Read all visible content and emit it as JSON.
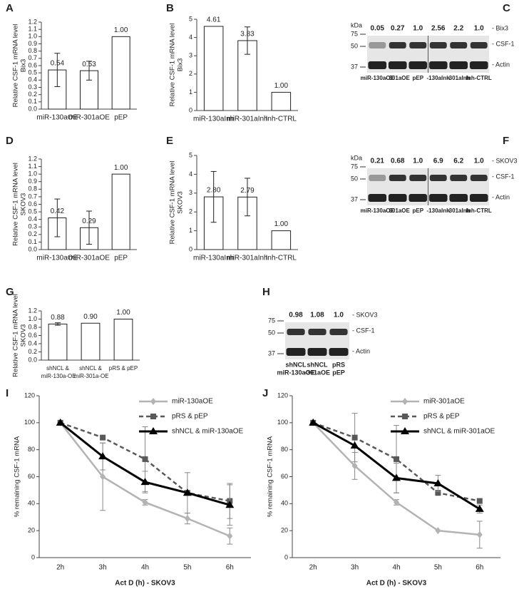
{
  "chart_data": [
    {
      "type": "bar",
      "panel": "A",
      "y_label": [
        "Relative CSF-1 mRNA level",
        "Bix3"
      ],
      "categories": [
        "miR-130aOE",
        "miR-301aOE",
        "pEP"
      ],
      "values": [
        0.54,
        0.53,
        1.0
      ],
      "value_labels": [
        "0.54",
        "0.53",
        "1.00"
      ],
      "errors": [
        0.23,
        0.13,
        0
      ],
      "color": "#ffffff",
      "ylim": [
        0,
        1.2
      ],
      "yticks": [
        {
          "value": 0,
          "label": "0.0"
        },
        0.1,
        0.2,
        0.3,
        0.4,
        0.5,
        0.6,
        0.7,
        0.8,
        0.9,
        {
          "value": 1,
          "label": "1.0"
        },
        1.1,
        1.2
      ]
    },
    {
      "type": "bar",
      "panel": "B",
      "y_label": [
        "Relative CSF-1 mRNA level",
        "Bix3"
      ],
      "categories": [
        "miR-130aInh",
        "miR-301aInh",
        "Inh-CTRL"
      ],
      "values": [
        4.61,
        3.83,
        1.0
      ],
      "value_labels": [
        "4.61",
        "3.83",
        "1.00"
      ],
      "errors": [
        0,
        0.75,
        0
      ],
      "color": "#ffffff",
      "ylim": [
        0,
        5
      ],
      "yticks": [
        0,
        1,
        2,
        3,
        4,
        5
      ]
    },
    {
      "type": "bar",
      "panel": "D",
      "y_label": [
        "Relative CSF-1 mRNA level",
        "SKOV3"
      ],
      "categories": [
        "miR-130aOE",
        "miR-301aOE",
        "pEP"
      ],
      "values": [
        0.42,
        0.29,
        1.0
      ],
      "value_labels": [
        "0.42",
        "0.29",
        "1.00"
      ],
      "errors": [
        0.25,
        0.22,
        0
      ],
      "color": "#ffffff",
      "ylim": [
        0,
        1.2
      ],
      "yticks": [
        {
          "value": 0,
          "label": "0.0"
        },
        0.1,
        0.2,
        0.3,
        0.4,
        0.5,
        0.6,
        0.7,
        0.8,
        0.9,
        {
          "value": 1,
          "label": "1.0"
        },
        1.1,
        1.2
      ]
    },
    {
      "type": "bar",
      "panel": "E",
      "y_label": [
        "Relative CSF-1 mRNA level",
        "SKOV3"
      ],
      "categories": [
        "miR-130aInh",
        "miR-301aInh",
        "Inh-CTRL"
      ],
      "values": [
        2.8,
        2.79,
        1.0
      ],
      "value_labels": [
        "2.80",
        "2.79",
        "1.00"
      ],
      "errors": [
        1.35,
        1.0,
        0
      ],
      "color": "#ffffff",
      "ylim": [
        0,
        5
      ],
      "yticks": [
        0,
        1,
        2,
        3,
        4,
        5
      ]
    },
    {
      "type": "bar",
      "panel": "G",
      "y_label": [
        "Relative CSF-1 mRNA level",
        "SKOV3"
      ],
      "categories": [
        "shNCL & miR-130a-OE",
        "shNCL & miR-301a-OE",
        "pRS & pEP"
      ],
      "values": [
        0.88,
        0.9,
        1.0
      ],
      "value_labels": [
        "0.88",
        "0.90",
        "1.00"
      ],
      "errors": [
        0.03,
        0,
        0
      ],
      "color": "#ffffff",
      "ylim": [
        0,
        1.2
      ],
      "yticks": [
        {
          "value": 0,
          "label": "0.0"
        },
        0.2,
        0.4,
        0.6,
        0.8,
        {
          "value": 1,
          "label": "1.0"
        },
        1.2
      ]
    },
    {
      "type": "line",
      "panel": "I",
      "x_label": "Act D (h) - SKOV3",
      "y_label": [
        "% remaining CSF-1 mRNA"
      ],
      "categories": [
        "2h",
        "3h",
        "4h",
        "5h",
        "6h"
      ],
      "ylim": [
        0,
        120
      ],
      "yticks": [
        0,
        20,
        40,
        60,
        80,
        100,
        120
      ],
      "legend": "upper right",
      "series": [
        {
          "name": "miR-130aOE",
          "color": "#b3b3b3",
          "line_style": "solid",
          "marker": "diamond",
          "values": [
            100,
            60,
            41,
            29,
            16
          ],
          "errors": [
            0,
            25,
            2,
            4,
            6
          ]
        },
        {
          "name": "pRS & pEP",
          "color": "#595959",
          "line_style": "dashed",
          "marker": "square",
          "values": [
            100,
            89,
            73,
            48,
            42
          ],
          "errors": [
            0,
            0,
            24,
            15,
            13
          ]
        },
        {
          "name": "shNCL & miR-130aOE",
          "color": "#000000",
          "line_style": "solid",
          "marker": "triangle",
          "values": [
            100,
            75,
            56,
            48,
            39
          ],
          "errors": [
            0,
            10,
            8,
            0,
            15
          ]
        }
      ]
    },
    {
      "type": "line",
      "panel": "J",
      "x_label": "Act D (h) - SKOV3",
      "y_label": [
        "% remaining CSF-1 mRNA"
      ],
      "categories": [
        "2h",
        "3h",
        "4h",
        "5h",
        "6h"
      ],
      "ylim": [
        0,
        120
      ],
      "yticks": [
        0,
        20,
        40,
        60,
        80,
        100,
        120
      ],
      "legend": "upper right",
      "series": [
        {
          "name": "miR-301aOE",
          "color": "#b3b3b3",
          "line_style": "solid",
          "marker": "diamond",
          "values": [
            100,
            68,
            41,
            20,
            17
          ],
          "errors": [
            0,
            10,
            2,
            0,
            10
          ]
        },
        {
          "name": "pRS & pEP",
          "color": "#595959",
          "line_style": "dashed",
          "marker": "square",
          "values": [
            100,
            89,
            73,
            48,
            42
          ],
          "errors": [
            0,
            18,
            25,
            0,
            0
          ]
        },
        {
          "name": "shNCL & miR-301aOE",
          "color": "#000000",
          "line_style": "solid",
          "marker": "triangle",
          "values": [
            100,
            83,
            59,
            55,
            36
          ],
          "errors": [
            0,
            0,
            11,
            6,
            3
          ]
        }
      ]
    }
  ],
  "blots": [
    {
      "panel": "C",
      "kda": "kDa",
      "markers": [
        "75",
        "50",
        "37"
      ],
      "quant": [
        "0.05",
        "0.27",
        "1.0",
        "2.56",
        "2.2",
        "1.0"
      ],
      "cell": "- Bix3",
      "bands": [
        "- CSF-1",
        "- Actin"
      ],
      "lanes": [
        [
          "miR-130aOE"
        ],
        [
          "- 301aOE"
        ],
        [
          "pEP"
        ],
        [
          "-130aInh"
        ],
        [
          "-301aInh"
        ],
        [
          "Inh-CTRL"
        ]
      ]
    },
    {
      "panel": "F",
      "kda": "kDa",
      "markers": [
        "75",
        "50",
        "37"
      ],
      "quant": [
        "0.21",
        "0.68",
        "1.0",
        "6.9",
        "6.2",
        "1.0"
      ],
      "cell": "- SKOV3",
      "bands": [
        "- CSF-1",
        "- Actin"
      ],
      "lanes": [
        [
          "miR-130aOE"
        ],
        [
          "- 301aOE"
        ],
        [
          "pEP"
        ],
        [
          "-130aInh"
        ],
        [
          "-301aInh"
        ],
        [
          "Inh-CTRL"
        ]
      ]
    },
    {
      "panel": "H",
      "markers": [
        "75",
        "50",
        "37"
      ],
      "quant": [
        "0.98",
        "1.08",
        "1.0"
      ],
      "cell": "- SKOV3",
      "bands": [
        "- CSF-1",
        "- Actin"
      ],
      "lanes": [
        [
          "shNCL",
          "miR-130aOE"
        ],
        [
          "shNCL",
          "-301aOE"
        ],
        [
          "pRS",
          "pEP"
        ]
      ]
    }
  ]
}
